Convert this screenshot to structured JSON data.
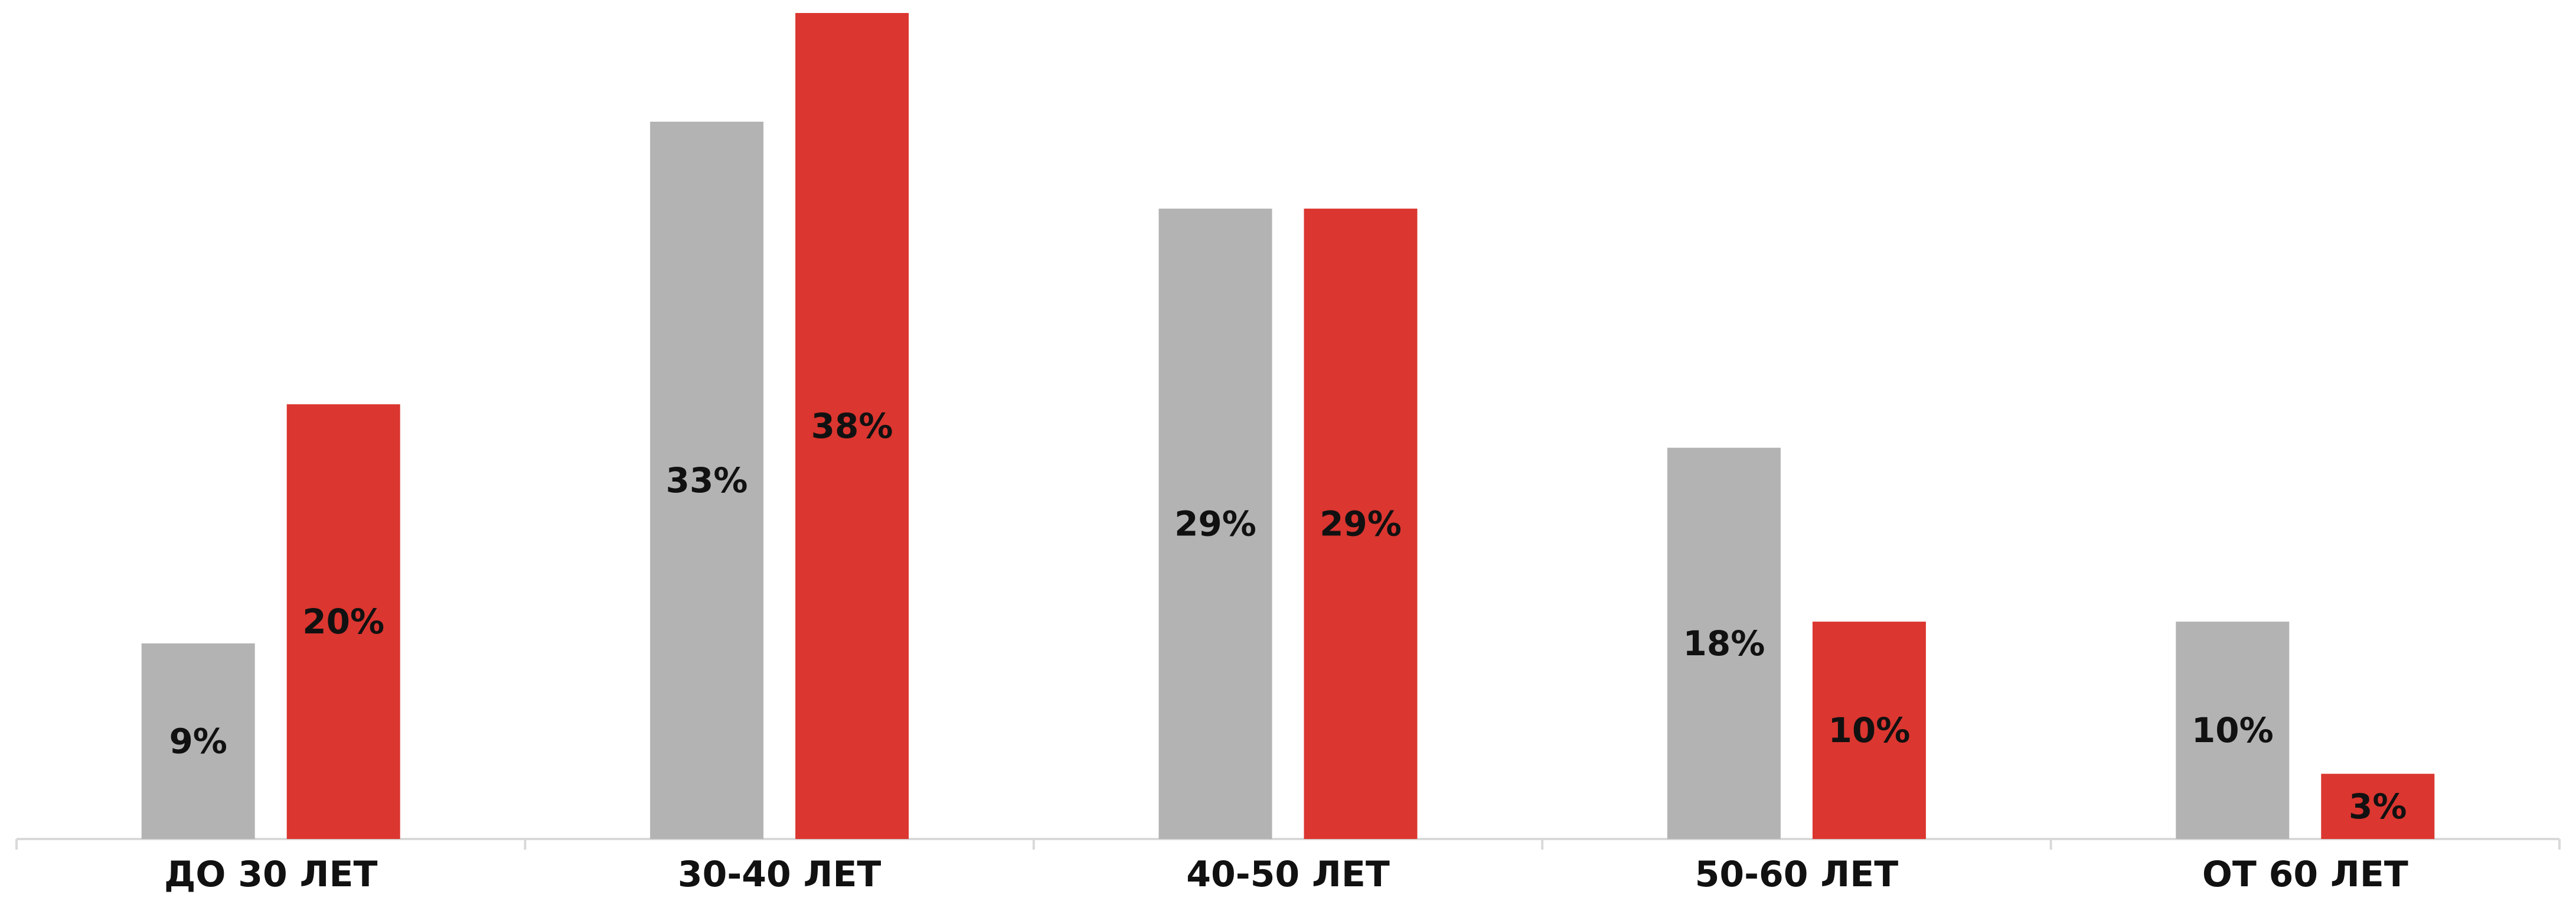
{
  "chart_data": {
    "type": "bar",
    "categories": [
      "ДО 30 ЛЕТ",
      "30-40 ЛЕТ",
      "40-50 ЛЕТ",
      "50-60 ЛЕТ",
      "ОТ 60 ЛЕТ"
    ],
    "series": [
      {
        "values": [
          9,
          33,
          29,
          18,
          10
        ],
        "labels": [
          "9%",
          "33%",
          "29%",
          "18%",
          "10%"
        ],
        "color": "#b3b3b3"
      },
      {
        "values": [
          20,
          38,
          29,
          10,
          3
        ],
        "labels": [
          "20%",
          "38%",
          "29%",
          "10%",
          "3%"
        ],
        "color": "#db3630"
      }
    ],
    "ylim": [
      0,
      38
    ],
    "grid": false,
    "legend": "none"
  }
}
